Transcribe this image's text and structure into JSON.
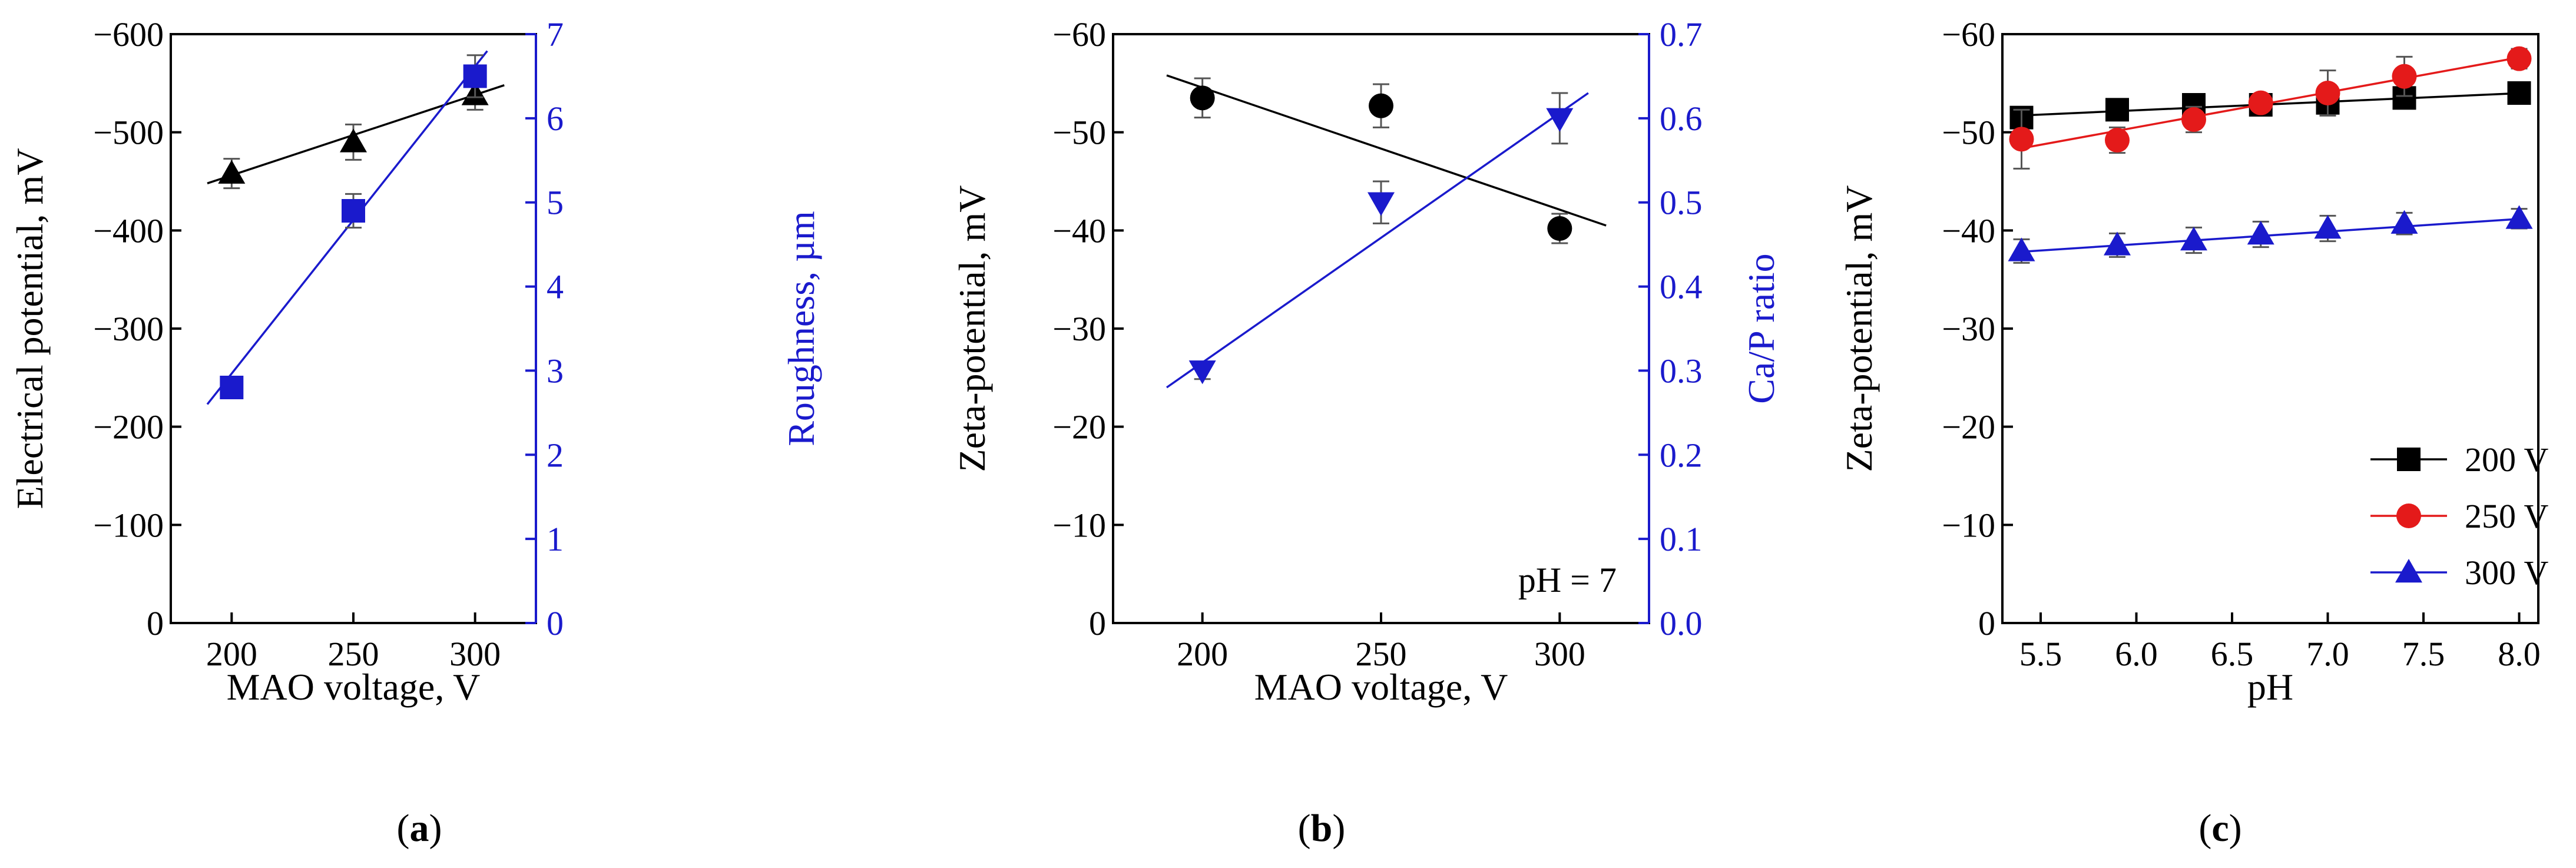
{
  "chart_data": [
    {
      "id": "a",
      "type": "scatter",
      "caption": "a",
      "xlabel": "MAO voltage, V",
      "ylabel": "Electrical potential, mV",
      "ylabel_right": "Roughness, µm",
      "xlim": [
        175,
        325
      ],
      "ylim": [
        0,
        -600
      ],
      "ylim_right": [
        0,
        7
      ],
      "x_ticks": [
        200,
        250,
        300
      ],
      "y_ticks": [
        0,
        -100,
        -200,
        -300,
        -400,
        -500,
        -600
      ],
      "y_ticks_right": [
        0,
        1,
        2,
        3,
        4,
        5,
        6,
        7
      ],
      "series": [
        {
          "name": "Electrical potential",
          "axis": "left",
          "marker": "triangle-up",
          "color": "#000000",
          "x": [
            200,
            250,
            300
          ],
          "y": [
            -458,
            -490,
            -538
          ],
          "err": [
            15,
            18,
            15
          ],
          "fit": {
            "x": [
              190,
              312
            ],
            "y": [
              -448,
              -548
            ]
          }
        },
        {
          "name": "Roughness",
          "axis": "right",
          "marker": "square",
          "color": "#1a1acc",
          "x": [
            200,
            250,
            300
          ],
          "y": [
            2.8,
            4.9,
            6.5
          ],
          "err": [
            0.05,
            0.2,
            0.25
          ],
          "fit": {
            "x": [
              190,
              305
            ],
            "y": [
              2.6,
              6.8
            ]
          }
        }
      ]
    },
    {
      "id": "b",
      "type": "scatter",
      "caption": "b",
      "xlabel": "MAO voltage, V",
      "ylabel": "Zeta-potential, mV",
      "ylabel_right": "Ca/P ratio",
      "annotation": "pH = 7",
      "xlim": [
        175,
        325
      ],
      "ylim": [
        0,
        -60
      ],
      "ylim_right": [
        0,
        0.7
      ],
      "x_ticks": [
        200,
        250,
        300
      ],
      "y_ticks": [
        0,
        -10,
        -20,
        -30,
        -40,
        -50,
        -60
      ],
      "y_ticks_right": [
        "0.0",
        "0.1",
        "0.2",
        "0.3",
        "0.4",
        "0.5",
        "0.6",
        "0.7"
      ],
      "series": [
        {
          "name": "Zeta-potential",
          "axis": "left",
          "marker": "circle",
          "color": "#000000",
          "x": [
            200,
            250,
            300
          ],
          "y": [
            -53.5,
            -52.7,
            -40.2
          ],
          "err": [
            2,
            2.2,
            1.5
          ],
          "fit": {
            "x": [
              190,
              313
            ],
            "y": [
              -55.8,
              -40.5
            ]
          }
        },
        {
          "name": "Ca/P ratio",
          "axis": "right",
          "marker": "triangle-down",
          "color": "#1a1acc",
          "x": [
            200,
            250,
            300
          ],
          "y": [
            0.3,
            0.5,
            0.6
          ],
          "err": [
            0.01,
            0.025,
            0.03
          ],
          "fit": {
            "x": [
              190,
              308
            ],
            "y": [
              0.28,
              0.63
            ]
          }
        }
      ]
    },
    {
      "id": "c",
      "type": "line",
      "caption": "c",
      "xlabel": "pH",
      "ylabel": "Zeta-potential, mV",
      "xlim": [
        5.3,
        8.1
      ],
      "ylim": [
        0,
        -60
      ],
      "x_ticks": [
        "5.5",
        "6.0",
        "6.5",
        "7.0",
        "7.5",
        "8.0"
      ],
      "y_ticks": [
        0,
        -10,
        -20,
        -30,
        -40,
        -50,
        -60
      ],
      "legend_position": "bottom-right",
      "series": [
        {
          "name": "200 V",
          "marker": "square",
          "color": "#000000",
          "x": [
            5.4,
            5.9,
            6.3,
            6.65,
            7.0,
            7.4,
            8.0
          ],
          "y": [
            -51.5,
            -52.3,
            -52.8,
            -52.8,
            -53.0,
            -53.5,
            -54.0
          ],
          "err": [
            0.5,
            0.5,
            0.5,
            0.8,
            0.5,
            0.5,
            0.5
          ],
          "fit": {
            "x": [
              5.38,
              8.02
            ],
            "y": [
              -51.7,
              -54.0
            ]
          }
        },
        {
          "name": "250 V",
          "marker": "circle",
          "color": "#e41a1a",
          "x": [
            5.4,
            5.9,
            6.3,
            6.65,
            7.0,
            7.4,
            8.0
          ],
          "y": [
            -49.3,
            -49.2,
            -51.3,
            -53.0,
            -54.0,
            -55.7,
            -57.5
          ],
          "err": [
            3.0,
            1.3,
            1.3,
            0.8,
            2.3,
            2.0,
            1.0
          ],
          "fit": {
            "x": [
              5.38,
              8.02
            ],
            "y": [
              -48.3,
              -57.7
            ]
          }
        },
        {
          "name": "300 V",
          "marker": "triangle-up",
          "color": "#1a1acc",
          "x": [
            5.4,
            5.9,
            6.3,
            6.65,
            7.0,
            7.4,
            8.0
          ],
          "y": [
            -37.9,
            -38.5,
            -39.0,
            -39.6,
            -40.2,
            -40.7,
            -41.2
          ],
          "err": [
            1.2,
            1.2,
            1.3,
            1.3,
            1.3,
            1.1,
            1.0
          ],
          "fit": {
            "x": [
              5.38,
              8.02
            ],
            "y": [
              -37.8,
              -41.2
            ]
          }
        }
      ]
    }
  ]
}
